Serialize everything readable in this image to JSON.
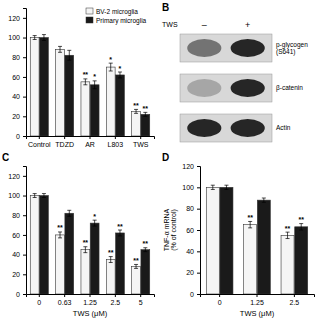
{
  "chart_data": [
    {
      "type": "bar",
      "categories": [
        "Control",
        "TDZD",
        "AR",
        "L803",
        "TWS"
      ],
      "series": [
        {
          "name": "BV-2 microglia",
          "color": "#f5f5f5",
          "values": [
            100,
            88,
            55,
            70,
            25
          ],
          "errors": [
            2,
            3,
            3,
            4,
            2
          ],
          "annotations": [
            null,
            null,
            "**",
            "*",
            "**"
          ]
        },
        {
          "name": "Primary microglia",
          "color": "#1a1a1a",
          "values": [
            100,
            82,
            52,
            62,
            22
          ],
          "errors": [
            3,
            5,
            4,
            3,
            2
          ],
          "annotations": [
            null,
            null,
            "*",
            "*",
            "**"
          ]
        }
      ],
      "ylim": [
        0,
        130
      ],
      "yticks": [
        0,
        20,
        40,
        60,
        80,
        100,
        120
      ],
      "legend": "top-right"
    },
    {
      "type": "blot",
      "title": "B",
      "xlabel": "TWS",
      "categories": [
        "–",
        "+"
      ],
      "color": "#d8d8d8",
      "series": [
        {
          "name": "p-glycogen\n(S641)",
          "colors": [
            "#737373",
            "#262626"
          ]
        },
        {
          "name": "β-catenin",
          "colors": [
            "#a6a6a6",
            "#262626"
          ]
        },
        {
          "name": "Actin",
          "colors": [
            "#262626",
            "#262626"
          ]
        }
      ]
    },
    {
      "type": "bar",
      "title": "C",
      "xlabel": "TWS (μM)",
      "categories": [
        "0",
        "0.63",
        "1.25",
        "2.5",
        "5"
      ],
      "series": [
        {
          "color": "#f5f5f5",
          "values": [
            100,
            60,
            45,
            35,
            28
          ],
          "errors": [
            2,
            3,
            3,
            3,
            2
          ],
          "annotations": [
            null,
            "**",
            "**",
            "**",
            "**"
          ]
        },
        {
          "color": "#1a1a1a",
          "values": [
            100,
            82,
            72,
            62,
            45
          ],
          "errors": [
            2,
            3,
            3,
            3,
            2
          ],
          "annotations": [
            null,
            null,
            "*",
            "**",
            "**"
          ]
        }
      ],
      "ylim": [
        0,
        130
      ],
      "yticks": [
        0,
        20,
        40,
        60,
        80,
        100,
        120
      ]
    },
    {
      "type": "bar",
      "title": "D",
      "xlabel": "TWS (μM)",
      "ylabel": "TNF-α mRNA\n(% of control)",
      "categories": [
        "0",
        "1.25",
        "2.5"
      ],
      "series": [
        {
          "color": "#f5f5f5",
          "values": [
            100,
            65,
            55
          ],
          "errors": [
            2,
            3,
            3
          ],
          "annotations": [
            null,
            "**",
            "**"
          ]
        },
        {
          "color": "#1a1a1a",
          "values": [
            100,
            88,
            63
          ],
          "errors": [
            2,
            2,
            3
          ],
          "annotations": [
            null,
            null,
            "**"
          ]
        }
      ],
      "ylim": [
        0,
        120
      ],
      "yticks": [
        0,
        20,
        40,
        60,
        80,
        100,
        120
      ]
    }
  ]
}
